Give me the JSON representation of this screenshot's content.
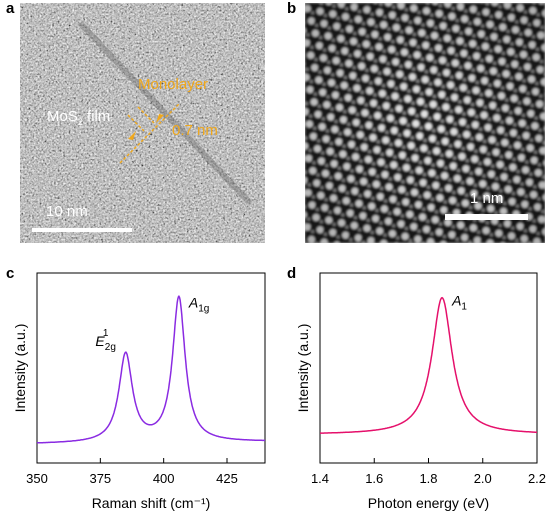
{
  "panels": {
    "a": {
      "letter": "a",
      "film_label": "MoS",
      "film_sub": "2",
      "film_suffix": " film",
      "monolayer_label": "Monolayer",
      "thickness_label": "0.7 nm",
      "scale_label": "10 nm",
      "accent_color": "#f0a81c"
    },
    "b": {
      "letter": "b",
      "scale_label": "1 nm"
    },
    "c": {
      "letter": "c"
    },
    "d": {
      "letter": "d"
    }
  },
  "chart_data": [
    {
      "type": "line",
      "panel": "c",
      "xlabel": "Raman shift (cm⁻¹)",
      "ylabel": "Intensity (a.u.)",
      "xlim": [
        350,
        440
      ],
      "xticks": [
        350,
        375,
        400,
        425
      ],
      "y_ticks_shown": false,
      "line_color": "#8a2be2",
      "peaks": [
        {
          "label": "E",
          "label_sub": "2g",
          "label_sup": "1",
          "position": 385,
          "height": 0.61
        },
        {
          "label": "A",
          "label_sub": "1g",
          "position": 406,
          "height": 1.0
        }
      ],
      "baseline": 0.0
    },
    {
      "type": "line",
      "panel": "d",
      "xlabel": "Photon energy (eV)",
      "ylabel": "Intensity (a.u.)",
      "xlim": [
        1.4,
        2.2
      ],
      "xticks": [
        "1.4",
        "1.6",
        "1.8",
        "2.0",
        "2.2"
      ],
      "y_ticks_shown": false,
      "line_color": "#e5106b",
      "peaks": [
        {
          "label": "A",
          "label_sub": "1",
          "position": 1.85,
          "height": 1.0
        }
      ],
      "baseline": 0.0
    }
  ]
}
